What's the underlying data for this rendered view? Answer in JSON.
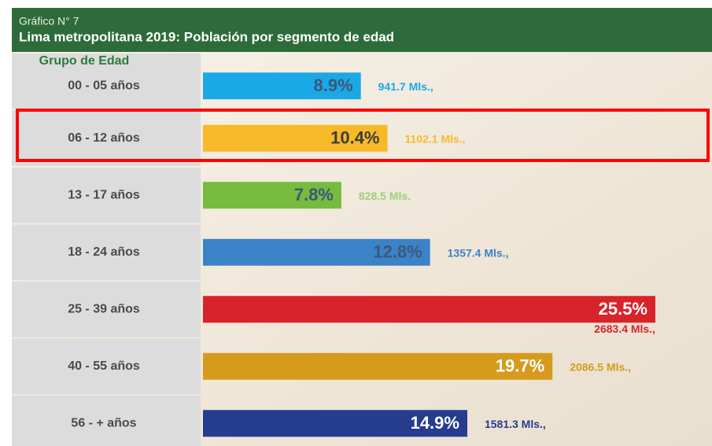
{
  "chart_data": {
    "type": "bar",
    "subtitle": "Gráfico N° 7",
    "title": "Lima metropolitana 2019: Población por segmento de edad",
    "category_header": "Grupo de Edad",
    "categories": [
      "00 - 05 años",
      "06 - 12 años",
      "13 - 17 años",
      "18 - 24 años",
      "25 - 39 años",
      "40 - 55 años",
      "56 - + años"
    ],
    "values": [
      8.9,
      10.4,
      7.8,
      12.8,
      25.5,
      19.7,
      14.9
    ],
    "value_labels": [
      "8.9%",
      "10.4%",
      "7.8%",
      "12.8%",
      "25.5%",
      "19.7%",
      "14.9%"
    ],
    "annotations": [
      "941.7 Mls.,",
      "1102.1 Mls.,",
      "828.5 Mls.",
      "1357.4 Mls.,",
      "2683.4 Mls.,",
      "2086.5 Mls.,",
      "1581.3 Mls.,"
    ],
    "colors": [
      "#1aa9e6",
      "#f7b928",
      "#77bb3f",
      "#3b83c7",
      "#d9232a",
      "#d69b1c",
      "#253c8f"
    ],
    "label_colors": [
      "#3d5778",
      "#3d3d3d",
      "#3d5778",
      "#3d5778",
      "#ffffff",
      "#ffffff",
      "#ffffff"
    ],
    "annotation_colors": [
      "#1aa9e6",
      "#f7b928",
      "#9fcf7a",
      "#3b83c7",
      "#d9232a",
      "#d69b1c",
      "#253c8f"
    ]
  }
}
